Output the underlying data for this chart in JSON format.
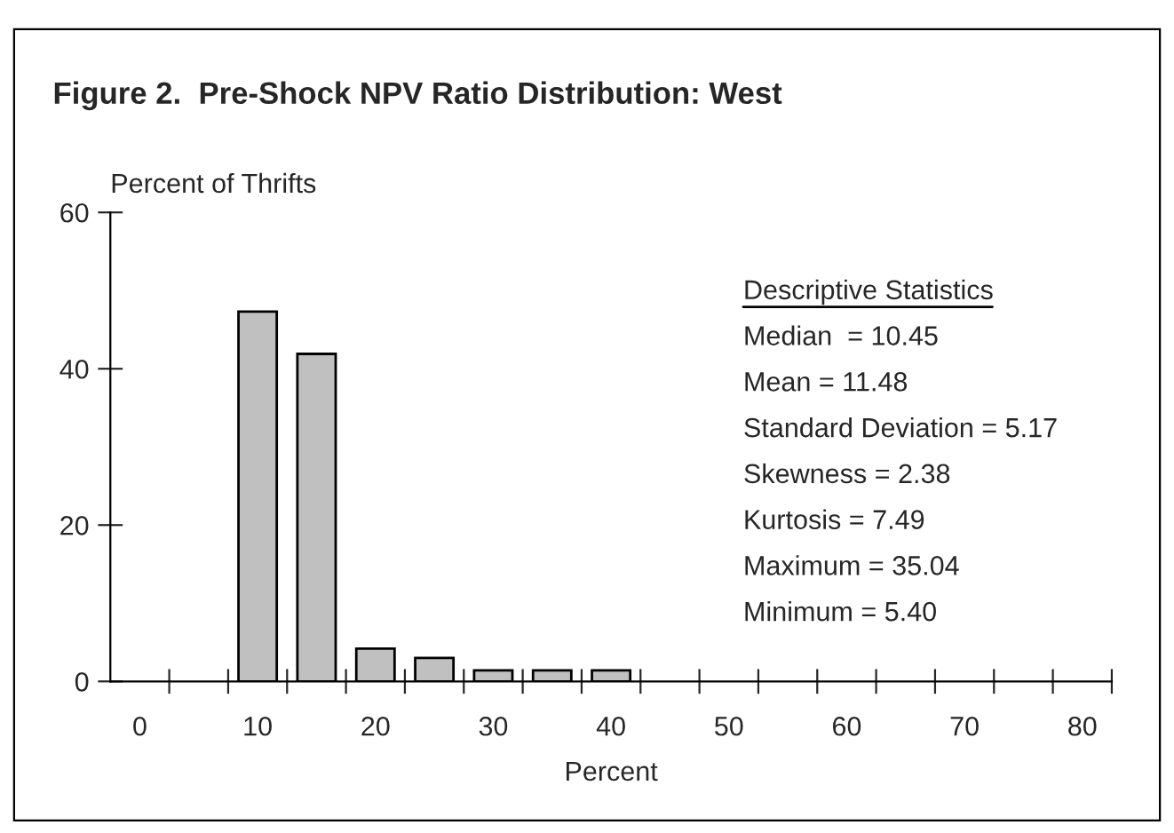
{
  "chart_data": {
    "type": "bar",
    "title": "Figure 2.  Pre-Shock NPV Ratio Distribution: West",
    "xlabel": "Percent",
    "ylabel": "Percent of Thrifts",
    "categories": [
      "0",
      null,
      "10",
      null,
      "20",
      null,
      "30",
      null,
      "40",
      null,
      "50",
      null,
      "60",
      null,
      "70",
      null,
      "80"
    ],
    "values": [
      0,
      0,
      47.3,
      41.9,
      4.2,
      3.0,
      1.4,
      1.4,
      1.4,
      0,
      0,
      0,
      0,
      0,
      0,
      0,
      0
    ],
    "color": "#c0c0c0",
    "ylim": [
      0,
      60
    ],
    "yticks": [
      0,
      20,
      40,
      60
    ],
    "grid": false,
    "legend": false,
    "annotations": [
      "Descriptive Statistics",
      "Median  = 10.45",
      "Mean = 11.48",
      "Standard Deviation = 5.17",
      "Skewness = 2.38",
      "Kurtosis = 7.49",
      "Maximum = 35.04",
      "Minimum = 5.40"
    ]
  }
}
